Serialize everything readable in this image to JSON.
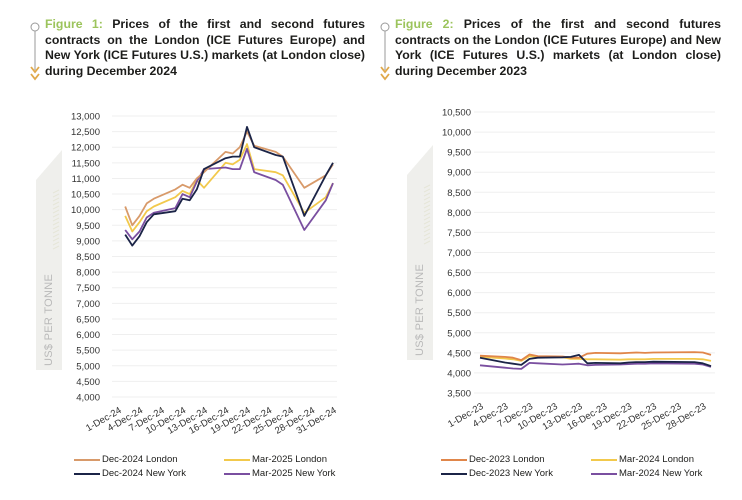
{
  "figures": [
    {
      "label": "Figure 1:",
      "title": "Prices of the first and second futures contracts on the London (ICE Futures Europe) and New York (ICE Futures U.S.) markets (at London close) during December 2024",
      "ylabel": "US$ PER TONNE",
      "legend": [
        {
          "name": "Dec-2024 London",
          "color": "#d89a6a"
        },
        {
          "name": "Mar-2025 London",
          "color": "#f2c94c"
        },
        {
          "name": "Dec-2024 New York",
          "color": "#1b2447"
        },
        {
          "name": "Mar-2025 New York",
          "color": "#7a4fa0"
        }
      ]
    },
    {
      "label": "Figure 2:",
      "title": "Prices of the first and second futures contracts on the London (ICE Futures Europe) and New York (ICE Futures U.S.) markets (at London close) during December 2023",
      "ylabel": "US$ PER TONNE",
      "legend": [
        {
          "name": "Dec-2023 London",
          "color": "#e0864a"
        },
        {
          "name": "Mar-2024 London",
          "color": "#f2c94c"
        },
        {
          "name": "Dec-2023 New York",
          "color": "#1b2447"
        },
        {
          "name": "Mar-2024 New York",
          "color": "#7a4fa0"
        }
      ]
    }
  ],
  "chart_data": [
    {
      "type": "line",
      "title": "Prices of the first and second futures contracts on the London (ICE Futures Europe) and New York (ICE Futures U.S.) markets (at London close) during December 2024",
      "xlabel": "",
      "ylabel": "US$ PER TONNE",
      "ylim": [
        4000,
        13000
      ],
      "yticks": [
        4000,
        4500,
        5000,
        5500,
        6000,
        6500,
        7000,
        7500,
        8000,
        8500,
        9000,
        9500,
        10000,
        10500,
        11000,
        11500,
        12000,
        12500,
        13000
      ],
      "ytick_labels": [
        "4,000",
        "4,500",
        "5,000",
        "5,500",
        "6,000",
        "6,500",
        "7,000",
        "7,500",
        "8,000",
        "8,500",
        "9,000",
        "9,500",
        "10,000",
        "10,500",
        "11,000",
        "11,500",
        "12,000",
        "12,500",
        "13,000"
      ],
      "xlim_day": [
        1,
        31
      ],
      "xtick_days": [
        1,
        4,
        7,
        10,
        13,
        16,
        19,
        22,
        25,
        28,
        31
      ],
      "xtick_labels": [
        "1-Dec-24",
        "4-Dec-24",
        "7-Dec-24",
        "10-Dec-24",
        "13-Dec-24",
        "16-Dec-24",
        "19-Dec-24",
        "22-Dec-24",
        "25-Dec-24",
        "28-Dec-24",
        "31-Dec-24"
      ],
      "grid": true,
      "legend_position": "bottom",
      "x_days": [
        2,
        3,
        4,
        5,
        6,
        9,
        10,
        11,
        12,
        13,
        16,
        17,
        18,
        19,
        20,
        23,
        24,
        27,
        30,
        31
      ],
      "series": [
        {
          "name": "Dec-2024 London",
          "color": "#d89a6a",
          "values": [
            10100,
            9500,
            9800,
            10200,
            10350,
            10650,
            10800,
            10700,
            11000,
            11200,
            11850,
            11800,
            12000,
            12500,
            12050,
            11850,
            11700,
            10700,
            11100,
            11450
          ]
        },
        {
          "name": "Mar-2025 London",
          "color": "#f2c94c",
          "values": [
            9800,
            9300,
            9600,
            9950,
            10100,
            10400,
            10600,
            10500,
            10950,
            10700,
            11500,
            11450,
            11600,
            12100,
            11300,
            11200,
            11100,
            9900,
            10400,
            10850
          ]
        },
        {
          "name": "Dec-2024 New York",
          "color": "#1b2447",
          "values": [
            9200,
            8850,
            9150,
            9600,
            9850,
            9950,
            10350,
            10300,
            10650,
            11300,
            11650,
            11700,
            11700,
            12650,
            12000,
            11750,
            11700,
            9800,
            11100,
            11500
          ]
        },
        {
          "name": "Mar-2025 New York",
          "color": "#7a4fa0",
          "values": [
            9350,
            9050,
            9300,
            9750,
            9900,
            10050,
            10500,
            10400,
            10900,
            11300,
            11350,
            11300,
            11300,
            11950,
            11200,
            10950,
            10800,
            9350,
            10300,
            10850
          ]
        }
      ]
    },
    {
      "type": "line",
      "title": "Prices of the first and second futures contracts on the London (ICE Futures Europe) and New York (ICE Futures U.S.) markets (at London close) during December 2023",
      "xlabel": "",
      "ylabel": "US$ PER TONNE",
      "ylim": [
        3500,
        10500
      ],
      "yticks": [
        3500,
        4000,
        4500,
        5000,
        5500,
        6000,
        6500,
        7000,
        7500,
        8000,
        8500,
        9000,
        9500,
        10000,
        10500
      ],
      "ytick_labels": [
        "3,500",
        "4,000",
        "4,500",
        "5,000",
        "5,500",
        "6,000",
        "6,500",
        "7,000",
        "7,500",
        "8,000",
        "8,500",
        "9,000",
        "9,500",
        "10,000",
        "10,500"
      ],
      "xlim_day": [
        1,
        29
      ],
      "xtick_days": [
        1,
        4,
        7,
        10,
        13,
        16,
        19,
        22,
        25,
        28
      ],
      "xtick_labels": [
        "1-Dec-23",
        "4-Dec-23",
        "7-Dec-23",
        "10-Dec-23",
        "13-Dec-23",
        "16-Dec-23",
        "19-Dec-23",
        "22-Dec-23",
        "25-Dec-23",
        "28-Dec-23"
      ],
      "grid": true,
      "legend_position": "bottom",
      "x_days": [
        1,
        4,
        5,
        6,
        7,
        8,
        11,
        12,
        13,
        14,
        15,
        18,
        19,
        20,
        21,
        22,
        27,
        28,
        29
      ],
      "series": [
        {
          "name": "Dec-2023 London",
          "color": "#e0864a",
          "values": [
            4430,
            4400,
            4380,
            4320,
            4460,
            4420,
            4410,
            4380,
            4380,
            4480,
            4500,
            4490,
            4500,
            4510,
            4500,
            4510,
            4520,
            4510,
            4450
          ]
        },
        {
          "name": "Mar-2024 London",
          "color": "#f2c94c",
          "values": [
            4400,
            4360,
            4340,
            4300,
            4420,
            4400,
            4390,
            4350,
            4350,
            4340,
            4340,
            4330,
            4340,
            4340,
            4340,
            4350,
            4350,
            4340,
            4300
          ]
        },
        {
          "name": "Dec-2023 New York",
          "color": "#1b2447",
          "values": [
            4380,
            4260,
            4230,
            4200,
            4350,
            4380,
            4390,
            4400,
            4450,
            4240,
            4250,
            4240,
            4260,
            4270,
            4270,
            4280,
            4270,
            4240,
            4170
          ]
        },
        {
          "name": "Mar-2024 New York",
          "color": "#7a4fa0",
          "values": [
            4190,
            4130,
            4110,
            4100,
            4250,
            4240,
            4210,
            4220,
            4230,
            4190,
            4200,
            4210,
            4220,
            4230,
            4230,
            4240,
            4230,
            4210,
            4150
          ]
        }
      ]
    }
  ]
}
